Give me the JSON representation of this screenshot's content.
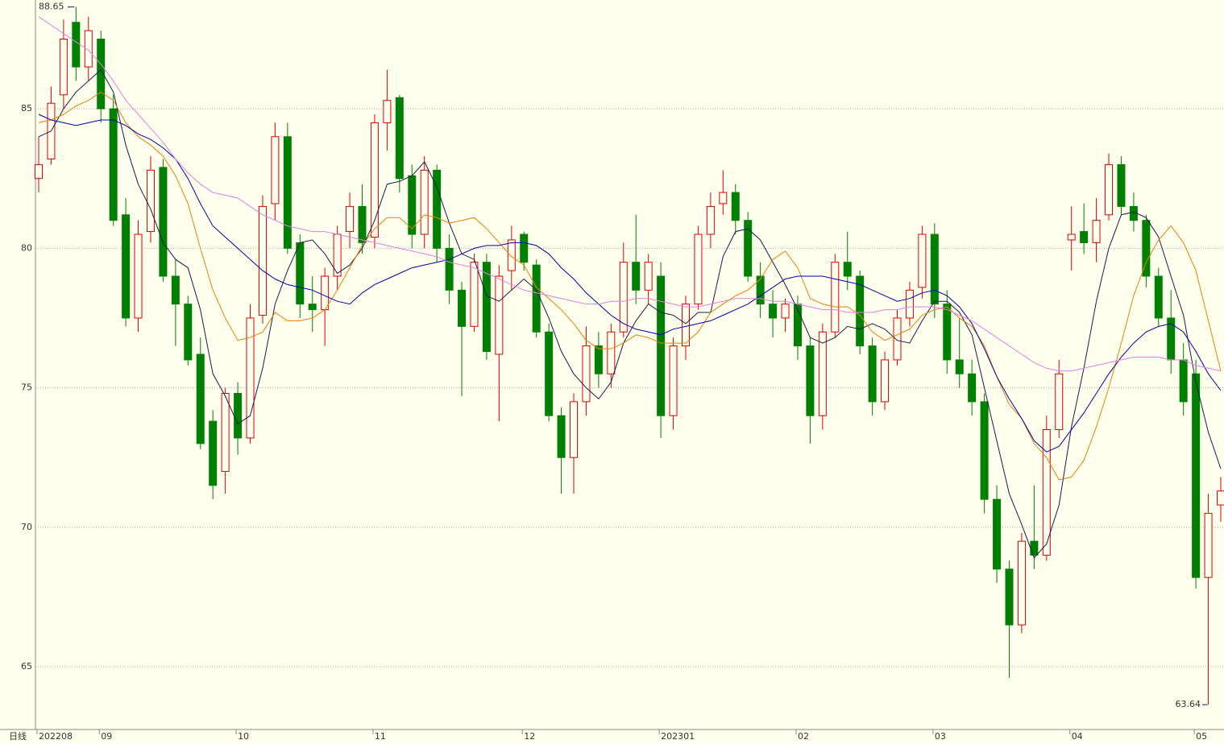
{
  "chart_data": {
    "type": "candlestick",
    "period": "日线",
    "categories": [
      "202208",
      null,
      null,
      null,
      null,
      "09",
      null,
      null,
      null,
      null,
      null,
      null,
      null,
      null,
      null,
      null,
      "10",
      null,
      null,
      null,
      null,
      null,
      null,
      null,
      null,
      null,
      null,
      "11",
      null,
      null,
      null,
      null,
      null,
      null,
      null,
      null,
      null,
      null,
      null,
      "12",
      null,
      null,
      null,
      null,
      null,
      null,
      null,
      null,
      null,
      null,
      "202301",
      null,
      null,
      null,
      null,
      null,
      null,
      null,
      null,
      null,
      null,
      "02",
      null,
      null,
      null,
      null,
      null,
      null,
      null,
      null,
      null,
      null,
      "03",
      null,
      null,
      null,
      null,
      null,
      null,
      null,
      null,
      null,
      null,
      "04",
      null,
      null,
      null,
      null,
      null,
      null,
      null,
      null,
      null,
      "05",
      null,
      null
    ],
    "open": [
      82.5,
      83.2,
      85.5,
      88.1,
      86.5,
      87.5,
      85.0,
      81.2,
      77.5,
      80.6,
      82.9,
      79.0,
      78.0,
      76.2,
      73.8,
      72.0,
      74.8,
      73.2,
      77.6,
      81.6,
      84.0,
      80.2,
      78.0,
      77.8,
      79.0,
      80.6,
      81.5,
      80.4,
      84.5,
      85.4,
      82.6,
      80.5,
      82.8,
      80.0,
      78.5,
      77.2,
      79.5,
      76.2,
      79.2,
      80.5,
      79.4,
      77.0,
      74.0,
      72.5,
      74.5,
      76.5,
      75.5,
      77.0,
      79.5,
      78.5,
      79.0,
      74.0,
      76.5,
      78.0,
      80.5,
      81.6,
      82.0,
      81.0,
      79.0,
      78.0,
      77.5,
      78.0,
      76.5,
      74.0,
      77.0,
      79.5,
      79.0,
      76.5,
      74.5,
      76.0,
      77.5,
      78.6,
      80.5,
      78.0,
      76.0,
      75.5,
      74.5,
      71.0,
      68.5,
      66.5,
      69.5,
      69.0,
      73.5,
      80.3,
      80.6,
      80.2,
      81.2,
      83.0,
      81.5,
      81.0,
      79.0,
      77.5,
      76.0,
      75.5,
      68.2,
      70.8
    ],
    "high": [
      84.0,
      85.8,
      88.2,
      88.65,
      88.3,
      87.8,
      85.5,
      81.8,
      81.0,
      83.3,
      83.2,
      79.6,
      78.3,
      76.8,
      74.2,
      75.0,
      75.2,
      78.0,
      81.9,
      84.5,
      84.5,
      80.5,
      79.0,
      79.3,
      80.8,
      82.0,
      82.3,
      84.8,
      86.4,
      85.5,
      83.0,
      83.3,
      83.0,
      80.5,
      78.8,
      79.8,
      79.8,
      79.4,
      80.8,
      80.6,
      79.6,
      77.3,
      74.3,
      74.8,
      77.2,
      77.0,
      77.3,
      80.2,
      81.2,
      79.8,
      79.5,
      76.8,
      78.3,
      80.8,
      82.0,
      82.8,
      82.3,
      81.3,
      79.5,
      78.5,
      78.2,
      78.3,
      76.8,
      77.3,
      79.8,
      80.6,
      79.2,
      76.8,
      76.3,
      77.8,
      78.8,
      80.8,
      80.9,
      78.5,
      77.5,
      76.0,
      74.8,
      71.5,
      68.8,
      69.8,
      71.5,
      74.0,
      76.0,
      81.5,
      81.6,
      81.8,
      83.4,
      83.3,
      82.0,
      81.2,
      79.3,
      78.5,
      76.6,
      76.0,
      71.2,
      71.8
    ],
    "low": [
      82.0,
      83.0,
      85.0,
      86.0,
      86.0,
      84.5,
      80.8,
      77.2,
      77.0,
      80.2,
      78.8,
      76.5,
      75.8,
      72.8,
      71.0,
      71.2,
      72.6,
      73.0,
      77.3,
      81.0,
      79.8,
      77.5,
      77.0,
      76.5,
      78.5,
      80.0,
      79.8,
      80.0,
      83.5,
      82.0,
      80.0,
      80.0,
      79.5,
      78.0,
      74.7,
      77.0,
      76.0,
      73.8,
      78.5,
      79.2,
      76.8,
      73.8,
      71.2,
      71.2,
      74.0,
      75.0,
      75.0,
      76.8,
      78.0,
      78.0,
      73.2,
      73.5,
      76.0,
      77.8,
      80.0,
      81.2,
      80.5,
      78.8,
      77.5,
      76.8,
      77.0,
      76.0,
      73.0,
      73.5,
      76.8,
      78.5,
      76.2,
      74.0,
      74.2,
      75.8,
      77.2,
      78.2,
      77.5,
      75.5,
      75.0,
      74.0,
      70.5,
      68.0,
      64.6,
      66.2,
      68.5,
      68.8,
      73.2,
      79.2,
      79.8,
      79.5,
      81.0,
      81.2,
      80.6,
      78.6,
      77.2,
      75.5,
      74.0,
      67.8,
      63.64,
      70.2
    ],
    "close": [
      83.0,
      85.2,
      87.5,
      86.5,
      87.8,
      85.0,
      81.0,
      77.5,
      80.5,
      82.8,
      79.0,
      78.0,
      76.0,
      73.0,
      71.5,
      74.8,
      73.2,
      77.5,
      81.5,
      84.0,
      80.0,
      78.0,
      77.8,
      79.0,
      80.5,
      81.5,
      80.2,
      84.5,
      85.3,
      82.5,
      80.5,
      82.8,
      80.0,
      78.5,
      77.2,
      79.5,
      76.3,
      79.0,
      80.3,
      79.5,
      77.0,
      74.0,
      72.5,
      74.5,
      76.5,
      75.5,
      77.0,
      79.5,
      78.5,
      79.5,
      74.0,
      76.5,
      78.0,
      80.5,
      81.5,
      82.0,
      81.0,
      79.0,
      78.0,
      77.5,
      78.0,
      76.5,
      74.0,
      77.0,
      79.5,
      79.0,
      76.5,
      74.5,
      76.0,
      77.5,
      78.5,
      80.5,
      78.0,
      76.0,
      75.5,
      74.5,
      71.0,
      68.5,
      66.5,
      69.5,
      69.0,
      73.5,
      75.5,
      80.5,
      80.2,
      81.0,
      83.0,
      81.5,
      81.0,
      79.0,
      77.5,
      76.0,
      74.5,
      68.2,
      70.5,
      71.3
    ],
    "up_color": "#e00000",
    "down_color": "#008000",
    "series": [
      {
        "color": "#1a1a50",
        "values": [
          84.0,
          84.2,
          85.0,
          85.6,
          86.0,
          86.4,
          85.6,
          83.7,
          82.3,
          81.4,
          80.2,
          79.6,
          79.3,
          77.8,
          75.5,
          74.7,
          73.7,
          74.0,
          75.7,
          78.0,
          79.2,
          80.2,
          80.3,
          79.8,
          79.1,
          79.4,
          80.0,
          81.0,
          82.3,
          82.4,
          82.6,
          83.1,
          82.2,
          80.9,
          79.8,
          79.6,
          78.3,
          78.1,
          78.5,
          78.9,
          78.5,
          77.5,
          76.3,
          75.5,
          75.0,
          74.6,
          75.2,
          76.6,
          77.4,
          78.0,
          77.7,
          77.6,
          77.3,
          77.7,
          77.7,
          79.7,
          80.6,
          80.7,
          80.3,
          79.5,
          78.7,
          77.8,
          76.8,
          76.6,
          76.8,
          77.2,
          77.1,
          77.3,
          77.1,
          76.7,
          76.6,
          77.4,
          78.1,
          78.1,
          77.7,
          76.9,
          75.0,
          73.1,
          71.2,
          70.1,
          68.9,
          69.4,
          70.8,
          73.6,
          75.7,
          78.1,
          80.0,
          81.2,
          81.3,
          81.1,
          80.4,
          79.0,
          77.6,
          75.2,
          73.4,
          72.1
        ]
      },
      {
        "color": "#f08000",
        "values": [
          84.5,
          84.6,
          84.8,
          85.1,
          85.3,
          85.6,
          85.3,
          84.5,
          84.0,
          83.7,
          83.3,
          82.6,
          81.6,
          80.0,
          78.5,
          77.5,
          76.7,
          76.8,
          77.0,
          77.7,
          77.4,
          77.4,
          77.5,
          77.8,
          78.5,
          79.3,
          80.1,
          80.7,
          81.1,
          81.1,
          80.7,
          81.2,
          81.1,
          80.9,
          81.0,
          81.1,
          80.7,
          80.2,
          79.7,
          79.4,
          78.6,
          78.2,
          77.8,
          77.3,
          76.7,
          76.4,
          76.4,
          76.6,
          76.9,
          76.8,
          76.6,
          76.6,
          76.6,
          77.0,
          77.7,
          78.0,
          78.3,
          78.5,
          78.9,
          79.6,
          79.9,
          79.3,
          78.2,
          78.0,
          77.9,
          77.9,
          77.6,
          77.0,
          76.7,
          76.9,
          77.1,
          77.6,
          77.8,
          77.9,
          77.5,
          77.2,
          76.5,
          75.4,
          74.4,
          73.9,
          73.0,
          72.5,
          71.7,
          71.8,
          72.4,
          73.6,
          75.0,
          76.6,
          78.3,
          79.5,
          80.3,
          80.8,
          80.2,
          79.2,
          77.4,
          75.6
        ]
      },
      {
        "color": "#0000b0",
        "values": [
          84.8,
          84.6,
          84.5,
          84.4,
          84.5,
          84.6,
          84.6,
          84.4,
          84.1,
          83.9,
          83.6,
          83.2,
          82.5,
          81.6,
          80.8,
          80.4,
          80.0,
          79.6,
          79.2,
          78.9,
          78.7,
          78.6,
          78.5,
          78.3,
          78.1,
          78.0,
          78.4,
          78.7,
          78.9,
          79.1,
          79.3,
          79.4,
          79.5,
          79.6,
          79.8,
          80.0,
          80.1,
          80.1,
          80.2,
          80.2,
          80.1,
          79.8,
          79.3,
          78.9,
          78.4,
          78.0,
          77.6,
          77.3,
          77.1,
          77.0,
          76.9,
          77.1,
          77.2,
          77.3,
          77.4,
          77.6,
          77.8,
          78.0,
          78.3,
          78.6,
          78.9,
          79.0,
          79.0,
          79.0,
          78.9,
          78.8,
          78.7,
          78.5,
          78.3,
          78.1,
          78.2,
          78.4,
          78.5,
          78.3,
          77.9,
          77.3,
          76.4,
          75.4,
          74.6,
          73.9,
          73.1,
          72.7,
          72.9,
          73.5,
          74.1,
          74.8,
          75.5,
          76.1,
          76.6,
          77.0,
          77.2,
          77.3,
          77.0,
          76.3,
          75.5,
          74.9
        ]
      },
      {
        "color": "#e080e8",
        "values": [
          88.3,
          88.0,
          87.7,
          87.4,
          87.1,
          86.6,
          86.0,
          85.3,
          84.8,
          84.3,
          83.8,
          83.2,
          82.7,
          82.3,
          82.0,
          81.9,
          81.8,
          81.5,
          81.2,
          81.0,
          80.8,
          80.7,
          80.6,
          80.6,
          80.5,
          80.4,
          80.3,
          80.2,
          80.1,
          80.0,
          79.9,
          79.8,
          79.7,
          79.5,
          79.4,
          79.3,
          79.1,
          78.9,
          78.7,
          78.5,
          78.4,
          78.3,
          78.2,
          78.1,
          78.0,
          78.0,
          78.1,
          78.1,
          78.2,
          78.2,
          78.1,
          78.0,
          77.9,
          77.9,
          78.0,
          78.1,
          78.2,
          78.2,
          78.2,
          78.1,
          78.1,
          78.0,
          77.9,
          77.8,
          77.8,
          77.7,
          77.7,
          77.7,
          77.8,
          77.8,
          77.9,
          77.9,
          77.9,
          77.8,
          77.6,
          77.4,
          77.1,
          76.8,
          76.5,
          76.2,
          75.9,
          75.7,
          75.6,
          75.6,
          75.7,
          75.8,
          75.9,
          76.0,
          76.1,
          76.1,
          76.1,
          76.0,
          76.0,
          75.8,
          75.7,
          75.6
        ]
      }
    ],
    "max_marker": 88.65,
    "min_marker": 63.64,
    "ylim": [
      62.75,
      88.9
    ],
    "yticks": [
      65,
      70,
      75,
      80,
      85
    ],
    "grid": true
  }
}
